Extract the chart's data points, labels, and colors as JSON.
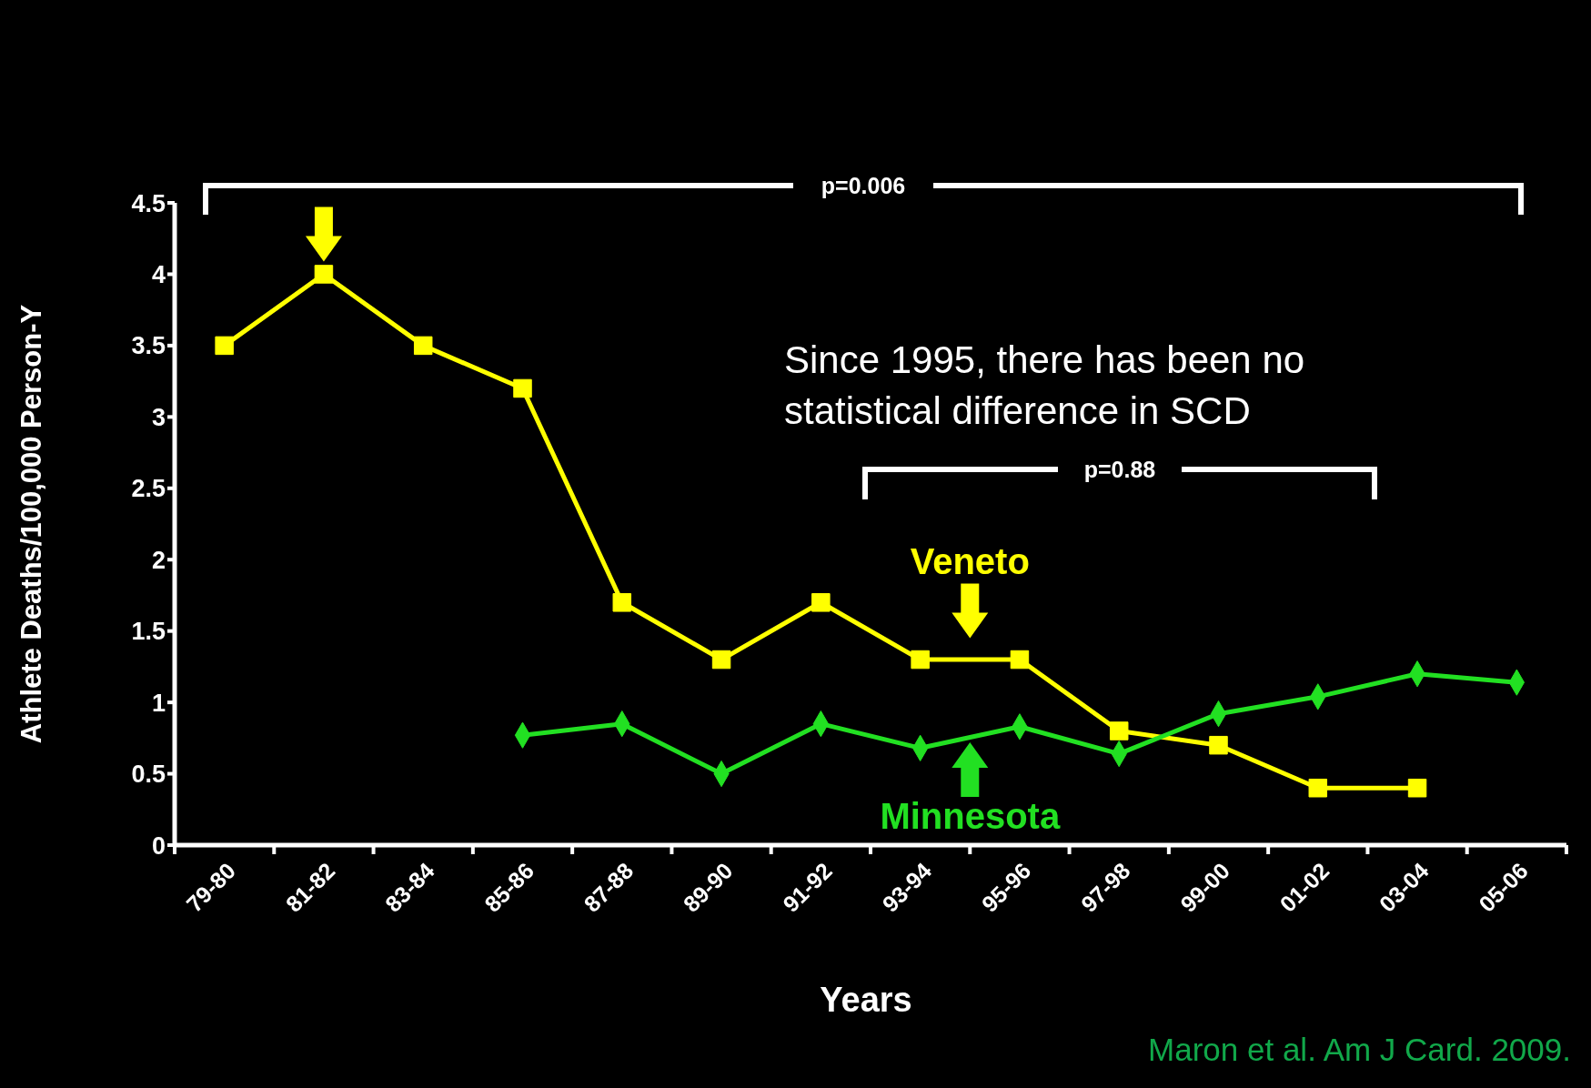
{
  "chart_data": {
    "type": "line",
    "xlabel": "Years",
    "ylabel": "Athlete Deaths/100,000 Person-Y",
    "categories": [
      "79-80",
      "81-82",
      "83-84",
      "85-86",
      "87-88",
      "89-90",
      "91-92",
      "93-94",
      "95-96",
      "97-98",
      "99-00",
      "01-02",
      "03-04",
      "05-06"
    ],
    "series": [
      {
        "name": "Veneto",
        "color": "#ffff00",
        "marker": "square",
        "values": [
          3.5,
          4.0,
          3.5,
          3.2,
          1.7,
          1.3,
          1.7,
          1.3,
          1.3,
          0.8,
          0.7,
          0.4,
          0.4,
          null
        ]
      },
      {
        "name": "Minnesota",
        "color": "#22e022",
        "marker": "diamond",
        "values": [
          null,
          null,
          null,
          0.77,
          0.85,
          0.5,
          0.85,
          0.68,
          0.83,
          0.64,
          0.92,
          1.04,
          1.2,
          1.14
        ]
      }
    ],
    "ylim": [
      0,
      4.5
    ],
    "yticks": [
      0,
      0.5,
      1,
      1.5,
      2,
      2.5,
      3,
      3.5,
      4,
      4.5
    ],
    "legend": "bottom",
    "annotations": [
      "p=0.006",
      "Since 1995, there has been no statistical difference in SCD",
      "p=0.88",
      "Maron et al. Am J Card. 2009."
    ]
  }
}
